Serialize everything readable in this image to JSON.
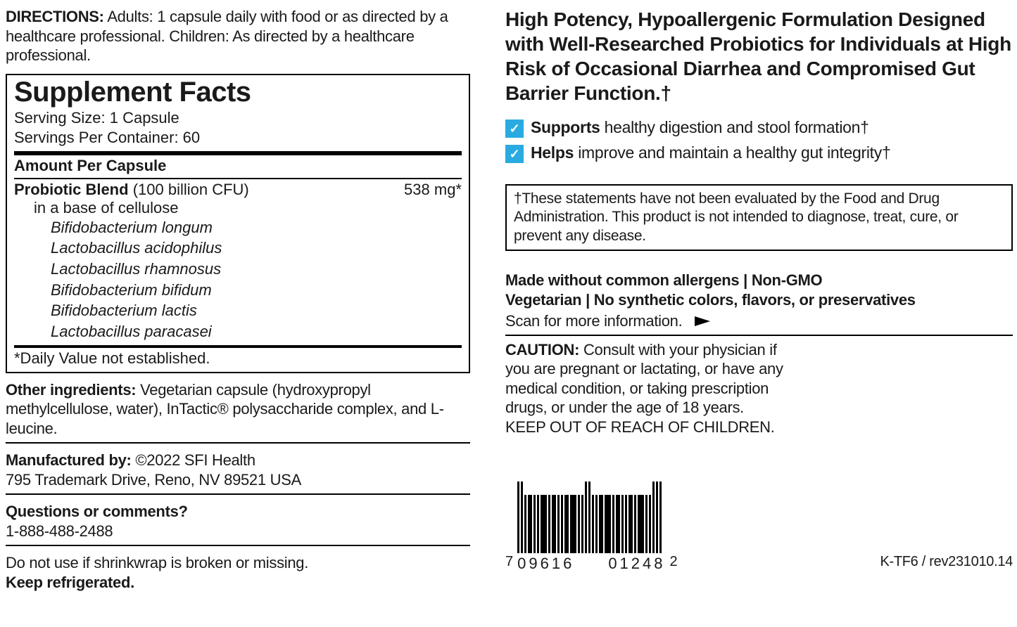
{
  "directions": {
    "label": "DIRECTIONS:",
    "text": "Adults: 1 capsule daily with food or as directed by a healthcare professional. Children: As directed by a healthcare professional."
  },
  "facts": {
    "title": "Supplement Facts",
    "serving_size": "Serving Size: 1 Capsule",
    "servings_per": "Servings Per Container: 60",
    "amount_header": "Amount Per Capsule",
    "blend_name": "Probiotic Blend",
    "blend_cfu": "(100 billion CFU)",
    "blend_amount": "538 mg*",
    "base": "in a base of cellulose",
    "strains": [
      "Bifidobacterium longum",
      "Lactobacillus acidophilus",
      "Lactobacillus rhamnosus",
      "Bifidobacterium bifidum",
      "Bifidobacterium lactis",
      "Lactobacillus paracasei"
    ],
    "dv_note": "*Daily Value not established."
  },
  "other_ing": {
    "label": "Other ingredients:",
    "text": "Vegetarian capsule (hydroxypropyl methylcellulose, water), InTactic® polysaccharide complex, and L-leucine."
  },
  "mfg": {
    "label": "Manufactured by:",
    "text": "©2022 SFI Health",
    "addr": "795 Trademark Drive, Reno, NV 89521 USA"
  },
  "questions": {
    "label": "Questions or comments?",
    "phone": "1-888-488-2488"
  },
  "storage": {
    "line1": "Do not use if shrinkwrap is broken or missing.",
    "line2": "Keep refrigerated."
  },
  "headline": "High Potency, Hypoallergenic Formulation Designed with Well-Researched Probiotics for Individuals at High Risk of Occasional Diarrhea and Compromised Gut Barrier Function.†",
  "benefits": [
    {
      "bold": "Supports",
      "rest": " healthy digestion and stool formation†"
    },
    {
      "bold": "Helps",
      "rest": " improve and maintain a healthy gut integrity†"
    }
  ],
  "disclaimer": "†These statements have not been evaluated by the Food and Drug Administration. This product is not intended to diagnose, treat, cure, or prevent any disease.",
  "allergens": {
    "line1": "Made without common allergens | Non-GMO",
    "line2": "Vegetarian | No synthetic colors, flavors, or preservatives"
  },
  "scan": "Scan for more information.",
  "caution": {
    "label": "CAUTION:",
    "text": "Consult with your physician if you are pregnant or lactating, or have any medical condition, or taking prescription drugs, or under the age of 18 years. KEEP OUT OF REACH OF CHILDREN."
  },
  "barcode": {
    "left_digit": "7",
    "group1": "09616",
    "group2": "01248",
    "right_digit": "2"
  },
  "rev": "K-TF6 / rev231010.14",
  "colors": {
    "check_bg": "#29abe2"
  }
}
